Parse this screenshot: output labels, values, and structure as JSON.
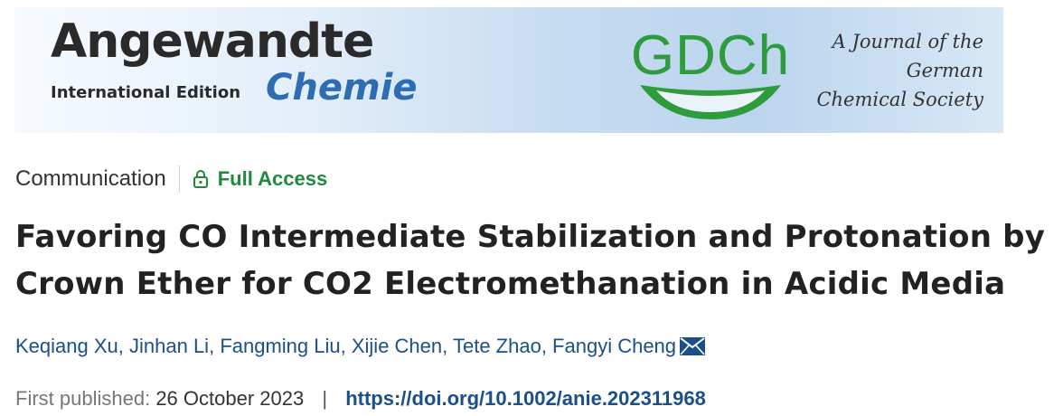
{
  "banner": {
    "journal_name": "Angewandte",
    "edition": "International Edition",
    "subtitle": "Chemie",
    "society_logo": "GDCh",
    "tagline": [
      "A Journal of the",
      "German",
      "Chemical Society"
    ]
  },
  "article": {
    "type": "Communication",
    "access": "Full Access",
    "access_icon": "lock-icon",
    "title": "Favoring CO Intermediate Stabilization and Protonation by Crown Ether for CO2 Electromethanation in Acidic Media",
    "authors": [
      "Keqiang Xu",
      "Jinhan Li",
      "Fangming Liu",
      "Xijie Chen",
      "Tete Zhao",
      "Fangyi Cheng"
    ],
    "corresponding_icon": "envelope-icon",
    "first_published_label": "First published:",
    "first_published_date": "26 October 2023",
    "doi": "https://doi.org/10.1002/anie.202311968"
  },
  "colors": {
    "access_green": "#1f8a3b",
    "link_blue": "#1b4f8a",
    "gdch_green": "#2e9b3c",
    "chemie_blue": "#2f6db3"
  }
}
